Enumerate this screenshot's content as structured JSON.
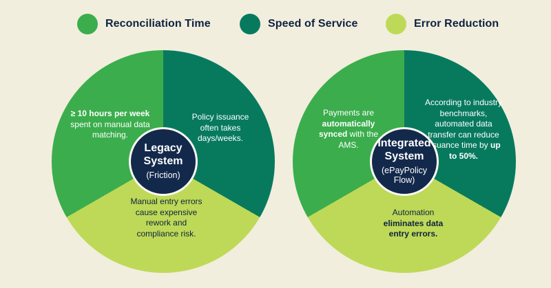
{
  "palette": {
    "background": "#f1eedd",
    "green": "#3bad4d",
    "teal": "#077a5e",
    "lime": "#bed957",
    "navy": "#13294b",
    "text_dark": "#0e2240",
    "label_light": "#ffffff"
  },
  "legend": {
    "position": "top",
    "items": [
      {
        "label": "Reconciliation Time",
        "color": "#3bad4d",
        "dot": "green-dot-icon"
      },
      {
        "label": "Speed of Service",
        "color": "#077a5e",
        "dot": "teal-dot-icon"
      },
      {
        "label": "Error Reduction",
        "color": "#bed957",
        "dot": "lime-dot-icon"
      }
    ]
  },
  "chart_data": [
    {
      "type": "pie",
      "title": "Legacy System",
      "subtitle": "(Friction)",
      "categories": [
        "Speed of Service",
        "Error Reduction",
        "Reconciliation Time"
      ],
      "values": [
        33.33,
        33.33,
        33.33
      ],
      "legend_position": "top",
      "slices": [
        {
          "category": "Reconciliation Time",
          "value": 33.33,
          "color": "#3bad4d",
          "label_pre": "",
          "label_bold": "≥ 10 hours per week",
          "label_post": " spent on manual data matching."
        },
        {
          "category": "Speed of Service",
          "value": 33.33,
          "color": "#077a5e",
          "label_pre": "Policy issuance often takes days/weeks.",
          "label_bold": "",
          "label_post": ""
        },
        {
          "category": "Error Reduction",
          "value": 33.33,
          "color": "#bed957",
          "label_pre": "Manual entry errors cause expensive rework and compliance risk.",
          "label_bold": "",
          "label_post": ""
        }
      ]
    },
    {
      "type": "pie",
      "title": "Integrated System",
      "subtitle": "(ePayPolicy Flow)",
      "categories": [
        "Speed of Service",
        "Error Reduction",
        "Reconciliation Time"
      ],
      "values": [
        33.33,
        33.33,
        33.33
      ],
      "legend_position": "top",
      "slices": [
        {
          "category": "Reconciliation Time",
          "value": 33.33,
          "color": "#3bad4d",
          "label_pre": "Payments are ",
          "label_bold": "automatically synced",
          "label_post": " with the AMS."
        },
        {
          "category": "Speed of Service",
          "value": 33.33,
          "color": "#077a5e",
          "label_pre": "According to industry benchmarks, automated data transfer can reduce issuance time by ",
          "label_bold": "up to 50%.",
          "label_post": ""
        },
        {
          "category": "Error Reduction",
          "value": 33.33,
          "color": "#bed957",
          "label_pre": "Automation ",
          "label_bold": "eliminates data entry errors.",
          "label_post": ""
        }
      ]
    }
  ]
}
